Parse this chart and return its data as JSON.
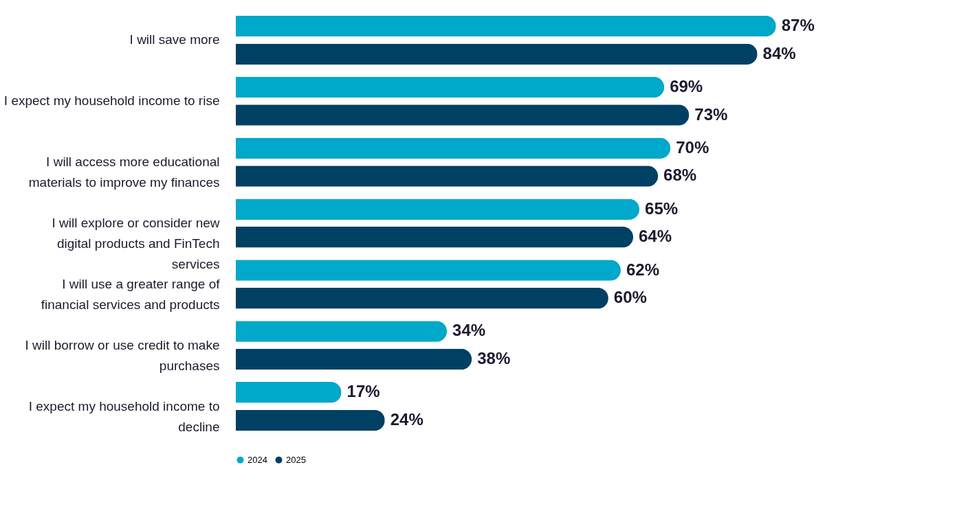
{
  "chart_data": {
    "type": "bar",
    "orientation": "horizontal",
    "categories": [
      "I will save more",
      "I expect my household income to rise",
      "I will access more educational materials to improve my finances",
      "I will explore or consider new digital products and FinTech services",
      "I will use a greater range of financial services and products",
      "I will borrow or use credit to make purchases",
      "I expect my household income to decline"
    ],
    "series": [
      {
        "name": "2024",
        "color": "#00a8c9",
        "values": [
          87,
          69,
          70,
          65,
          62,
          34,
          17
        ],
        "value_labels": [
          "87%",
          "69%",
          "70%",
          "65%",
          "62%",
          "34%",
          "17%"
        ]
      },
      {
        "name": "2025",
        "color": "#004063",
        "values": [
          84,
          73,
          68,
          64,
          60,
          38,
          24
        ],
        "value_labels": [
          "84%",
          "73%",
          "68%",
          "64%",
          "60%",
          "38%",
          "24%"
        ]
      }
    ],
    "legend": "bottom",
    "grid": false
  }
}
